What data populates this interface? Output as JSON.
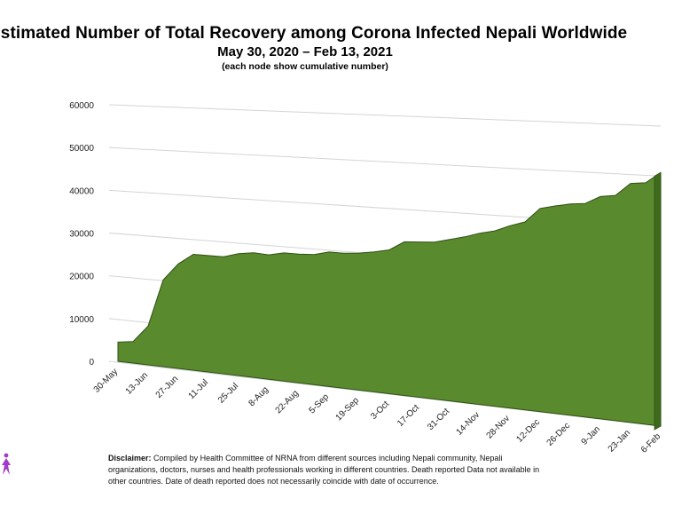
{
  "title": "Estimated Number of Total Recovery among Corona Infected Nepali Worldwide",
  "subtitle": "May 30, 2020 – Feb 13, 2021",
  "note": "(each node show cumulative number)",
  "disclaimer": {
    "label": "Disclaimer:",
    "text": "Compiled by Health Committee  of NRNA  from different sources including Nepali community, Nepali organizations, doctors, nurses and health professionals working in different countries. Death reported Data not available in other countries. Date of death reported does not necessarily coincide with date of occurrence."
  },
  "colors": {
    "area": "#5a8a2e",
    "area_edge": "#2f4f14",
    "grid": "#d4d4d4"
  },
  "chart_data": {
    "type": "area",
    "title": "Estimated Number of Total Recovery among Corona Infected Nepali Worldwide",
    "xlabel": "",
    "ylabel": "",
    "ylim": [
      0,
      60000
    ],
    "yticks": [
      0,
      10000,
      20000,
      30000,
      40000,
      50000,
      60000
    ],
    "x_tick_labels": [
      "30-May",
      "13-Jun",
      "27-Jun",
      "11-Jul",
      "25-Jul",
      "8-Aug",
      "22-Aug",
      "5-Sep",
      "19-Sep",
      "3-Oct",
      "17-Oct",
      "31-Oct",
      "14-Nov",
      "28-Nov",
      "12-Dec",
      "26-Dec",
      "9-Jan",
      "23-Jan",
      "6-Feb"
    ],
    "series": [
      {
        "name": "Total Recovery",
        "values": [
          4500,
          5000,
          9000,
          20000,
          24000,
          26500,
          26500,
          26500,
          27500,
          28000,
          27800,
          28500,
          28500,
          28700,
          29500,
          29500,
          29800,
          30300,
          31000,
          33000,
          33200,
          33400,
          34200,
          35000,
          36000,
          36700,
          38000,
          39000,
          42000,
          42700,
          43300,
          43600,
          45200,
          45600,
          48200,
          48500,
          50700
        ]
      }
    ]
  }
}
